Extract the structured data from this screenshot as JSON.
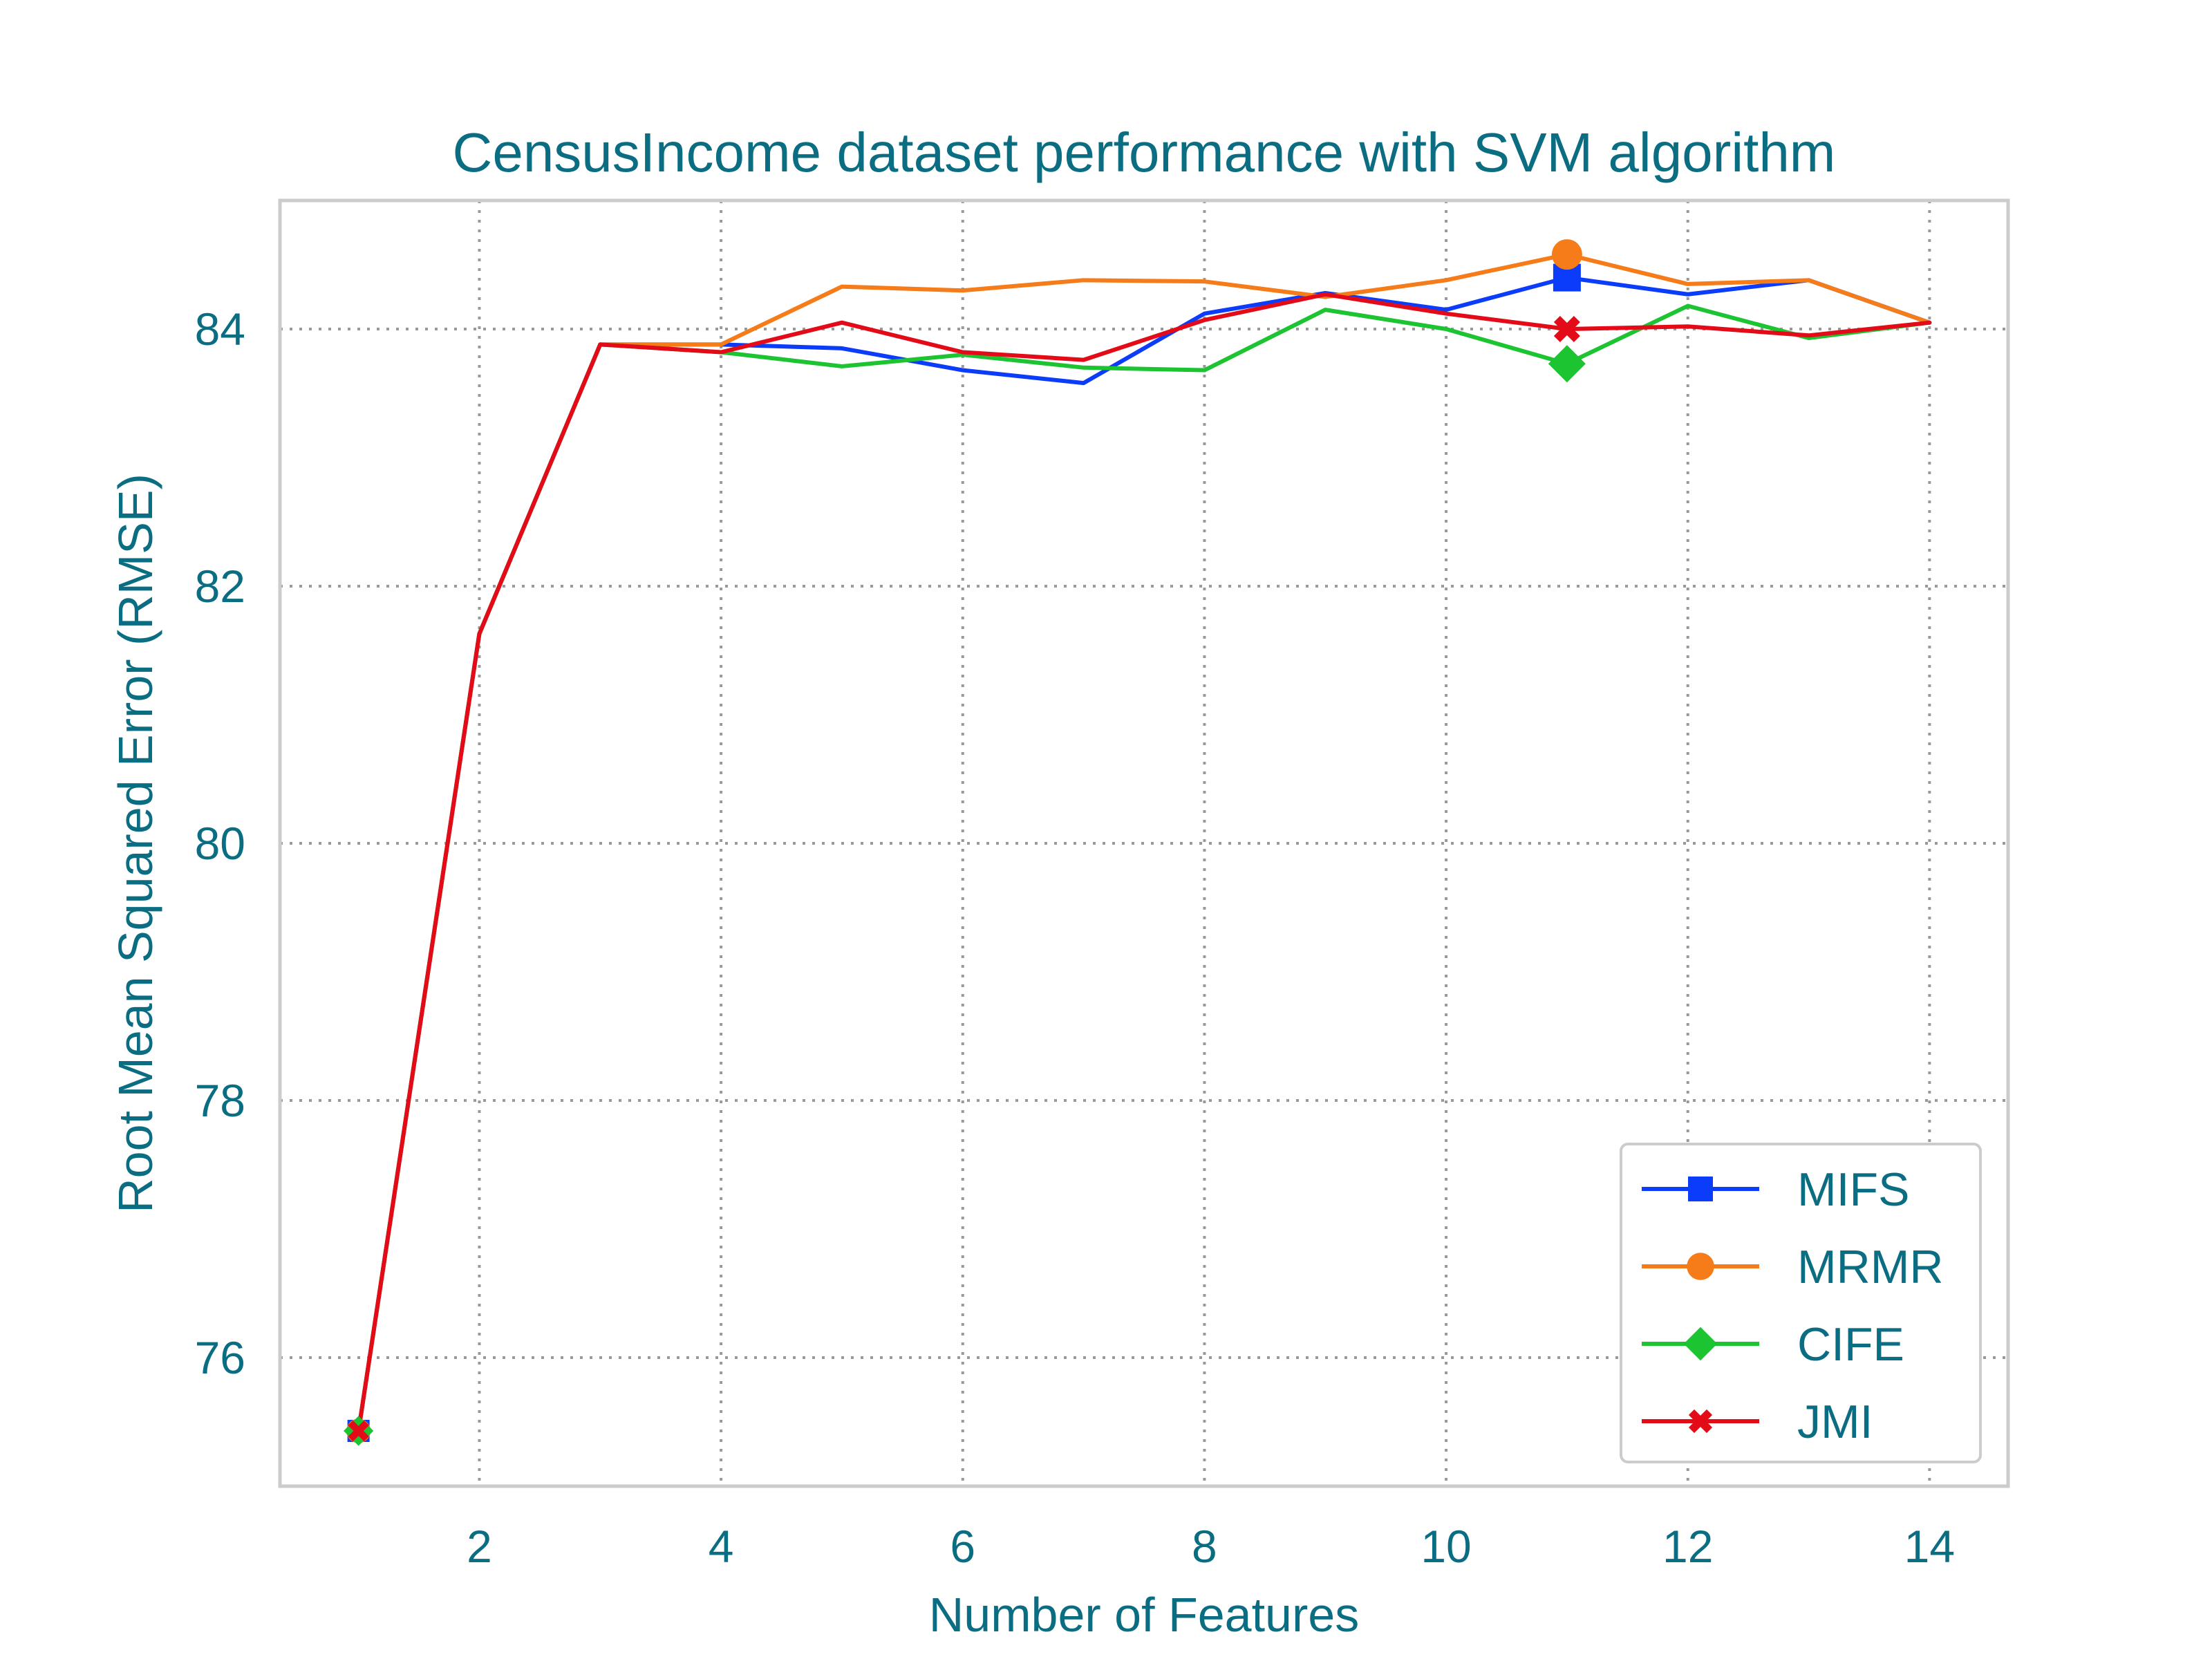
{
  "chart_data": {
    "type": "line",
    "title": "CensusIncome dataset performance with SVM algorithm",
    "xlabel": "Number of Features",
    "ylabel": "Root Mean Squared Error (RMSE)",
    "xlim": [
      0.35,
      14.65
    ],
    "ylim": [
      75.0,
      85.0
    ],
    "x_ticks": [
      2,
      4,
      6,
      8,
      10,
      12,
      14
    ],
    "y_ticks": [
      76,
      78,
      80,
      82,
      84
    ],
    "grid": true,
    "legend_position": "bottom-right",
    "x": [
      1,
      2,
      3,
      4,
      5,
      6,
      7,
      8,
      9,
      10,
      11,
      12,
      13,
      14
    ],
    "series": [
      {
        "name": "MIFS",
        "color": "#0b3cfa",
        "marker": "square",
        "marker_at": 11,
        "values": [
          75.43,
          81.63,
          83.88,
          83.88,
          83.85,
          83.68,
          83.58,
          84.12,
          84.28,
          84.15,
          84.4,
          84.27,
          84.38,
          84.05
        ]
      },
      {
        "name": "MRMR",
        "color": "#f57c18",
        "marker": "circle",
        "marker_at": 11,
        "values": [
          75.43,
          81.63,
          83.88,
          83.88,
          84.33,
          84.3,
          84.38,
          84.37,
          84.25,
          84.38,
          84.58,
          84.35,
          84.38,
          84.05
        ]
      },
      {
        "name": "CIFE",
        "color": "#1cc431",
        "marker": "diamond",
        "marker_at": 11,
        "values": [
          75.43,
          81.63,
          83.88,
          83.82,
          83.71,
          83.8,
          83.7,
          83.68,
          84.15,
          84.0,
          83.73,
          84.18,
          83.93,
          84.05
        ]
      },
      {
        "name": "JMI",
        "color": "#e30b17",
        "marker": "x",
        "marker_at": 11,
        "values": [
          75.43,
          81.63,
          83.88,
          83.82,
          84.05,
          83.82,
          83.76,
          84.07,
          84.27,
          84.12,
          84.0,
          84.02,
          83.95,
          84.05
        ]
      }
    ]
  }
}
